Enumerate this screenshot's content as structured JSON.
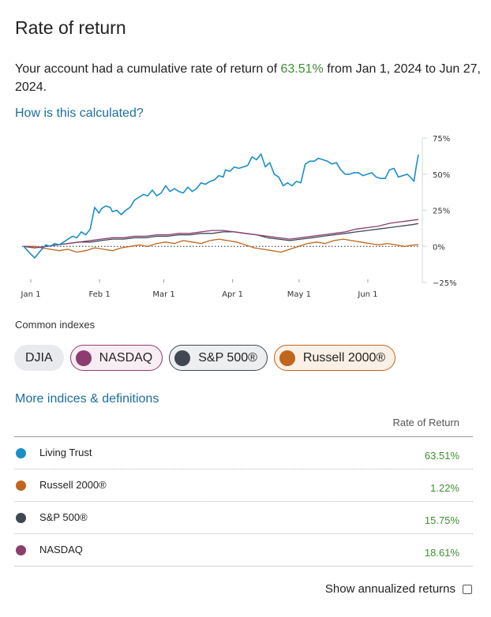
{
  "page": {
    "title": "Rate of return",
    "summary_prefix": "Your account had a cumulative rate of return of ",
    "summary_pct": "63.51%",
    "summary_suffix": " from Jan 1, 2024 to Jun 27, 2024.",
    "how_link": "How is this calculated?",
    "common_indexes_label": "Common indexes",
    "more_link": "More indices & definitions",
    "ror_header": "Rate of Return",
    "annualized_label": "Show annualized returns"
  },
  "chips": {
    "djia": "DJIA",
    "nasdaq": "NASDAQ",
    "sp500": "S&P 500®",
    "russell": "Russell 2000®"
  },
  "colors": {
    "living_trust": "#1a8fc7",
    "russell": "#c0651b",
    "sp500": "#3f4852",
    "nasdaq": "#8c3d6e",
    "positive": "#3f8f33",
    "link": "#1a6fa0"
  },
  "table": [
    {
      "name": "Living Trust",
      "value": "63.51%"
    },
    {
      "name": "Russell 2000®",
      "value": "1.22%"
    },
    {
      "name": "S&P 500®",
      "value": "15.75%"
    },
    {
      "name": "NASDAQ",
      "value": "18.61%"
    }
  ],
  "chart_data": {
    "type": "line",
    "title": "",
    "xlabel": "",
    "ylabel": "",
    "ylim": [
      -25,
      75
    ],
    "y_ticks": [
      "75%",
      "50%",
      "25%",
      "0%",
      "−25%"
    ],
    "y_tick_values": [
      75,
      50,
      25,
      0,
      -25
    ],
    "x_ticks": [
      "Jan 1",
      "Feb 1",
      "Mar 1",
      "Apr 1",
      "May 1",
      "Jun 1"
    ],
    "x_tick_days": [
      0,
      31,
      60,
      91,
      121,
      152
    ],
    "x_max_day": 178,
    "series": [
      {
        "name": "Living Trust",
        "color": "#1a8fc7",
        "x": [
          0,
          3,
          5,
          7,
          10,
          12,
          14,
          16,
          18,
          20,
          22,
          24,
          26,
          28,
          30,
          32,
          34,
          35,
          37,
          39,
          40,
          42,
          44,
          46,
          48,
          50,
          52,
          54,
          56,
          58,
          60,
          62,
          64,
          66,
          68,
          70,
          72,
          74,
          76,
          78,
          80,
          82,
          84,
          86,
          88,
          90,
          91,
          93,
          95,
          97,
          99,
          101,
          103,
          105,
          107,
          109,
          111,
          113,
          115,
          117,
          119,
          121,
          123,
          125,
          127,
          129,
          131,
          133,
          135,
          137,
          139,
          141,
          143,
          145,
          147,
          149,
          151,
          153,
          155,
          157,
          159,
          161,
          163,
          165,
          167,
          169,
          171,
          173,
          175,
          176,
          177,
          178
        ],
        "y": [
          0,
          -5,
          -8,
          -4,
          1,
          0,
          2,
          1,
          3,
          5,
          7,
          6,
          10,
          8,
          12,
          27,
          23,
          26,
          28,
          27,
          24,
          25,
          22,
          25,
          27,
          32,
          34,
          36,
          35,
          39,
          35,
          37,
          42,
          38,
          40,
          38,
          37,
          41,
          38,
          40,
          44,
          43,
          45,
          46,
          49,
          48,
          53,
          52,
          55,
          54,
          55,
          56,
          62,
          60,
          64,
          55,
          58,
          50,
          48,
          42,
          44,
          42,
          45,
          44,
          57,
          59,
          59,
          61,
          60,
          59,
          57,
          58,
          53,
          50,
          50,
          51,
          51,
          49,
          50,
          51,
          48,
          47,
          47,
          53,
          54,
          48,
          49,
          50,
          47,
          45,
          55,
          63.5
        ]
      },
      {
        "name": "Russell 2000®",
        "color": "#c0651b",
        "x": [
          0,
          5,
          8,
          12,
          16,
          20,
          24,
          28,
          32,
          36,
          40,
          44,
          48,
          52,
          56,
          60,
          64,
          68,
          72,
          76,
          80,
          84,
          88,
          92,
          96,
          100,
          104,
          108,
          112,
          116,
          120,
          124,
          128,
          132,
          136,
          140,
          144,
          148,
          152,
          156,
          160,
          164,
          168,
          172,
          176,
          178
        ],
        "y": [
          0,
          0,
          -1,
          -2,
          -3,
          -2,
          -4,
          -3,
          -1,
          -2,
          -3,
          -1,
          0,
          1,
          0,
          2,
          3,
          2,
          4,
          3,
          2,
          4,
          5,
          4,
          3,
          1,
          -1,
          -2,
          -3,
          -4,
          -2,
          0,
          2,
          3,
          2,
          4,
          5,
          4,
          3,
          2,
          1,
          2,
          1,
          0,
          1,
          1.2
        ]
      },
      {
        "name": "S&P 500®",
        "color": "#3f4852",
        "x": [
          0,
          5,
          10,
          15,
          20,
          25,
          30,
          35,
          40,
          45,
          50,
          55,
          60,
          65,
          70,
          75,
          80,
          85,
          90,
          95,
          100,
          105,
          110,
          115,
          120,
          125,
          130,
          135,
          140,
          145,
          150,
          155,
          160,
          165,
          170,
          175,
          178
        ],
        "y": [
          0,
          -1,
          0,
          1,
          2,
          3,
          3,
          4,
          5,
          5,
          6,
          6,
          7,
          7,
          8,
          8,
          9,
          9,
          10,
          10,
          9,
          8,
          6,
          5,
          4,
          5,
          6,
          7,
          8,
          9,
          10,
          11,
          12,
          13,
          14,
          15,
          15.75
        ]
      },
      {
        "name": "NASDAQ",
        "color": "#8c3d6e",
        "x": [
          0,
          5,
          10,
          15,
          20,
          25,
          30,
          35,
          40,
          45,
          50,
          55,
          60,
          65,
          70,
          75,
          80,
          85,
          90,
          95,
          100,
          105,
          110,
          115,
          120,
          125,
          130,
          135,
          140,
          145,
          150,
          155,
          160,
          165,
          170,
          175,
          178
        ],
        "y": [
          0,
          -1,
          0,
          1,
          2,
          3,
          4,
          5,
          6,
          6,
          7,
          7,
          8,
          8,
          9,
          9,
          10,
          11,
          11,
          10,
          9,
          8,
          7,
          6,
          5,
          6,
          7,
          8,
          9,
          10,
          12,
          13,
          14,
          16,
          17,
          18,
          18.61
        ]
      }
    ]
  }
}
